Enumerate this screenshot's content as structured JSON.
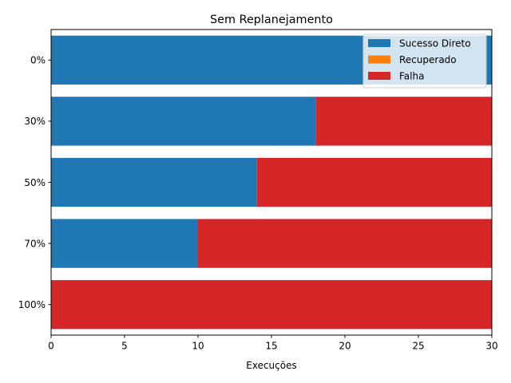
{
  "colors": {
    "background": "#ffffff",
    "axis": "#000000"
  },
  "chart_data": {
    "type": "bar",
    "orientation": "horizontal",
    "stacked": true,
    "title": "Sem Replanejamento",
    "xlabel": "Execuções",
    "ylabel": "",
    "categories": [
      "0%",
      "30%",
      "50%",
      "70%",
      "100%"
    ],
    "series": [
      {
        "name": "Sucesso Direto",
        "color": "#1f77b4",
        "values": [
          30,
          18,
          14,
          10,
          0
        ]
      },
      {
        "name": "Recuperado",
        "color": "#ff7f0e",
        "values": [
          0,
          0,
          0,
          0,
          0
        ]
      },
      {
        "name": "Falha",
        "color": "#d62728",
        "values": [
          0,
          12,
          16,
          20,
          30
        ]
      }
    ],
    "xlim": [
      0,
      30
    ],
    "xticks": [
      0,
      5,
      10,
      15,
      20,
      25,
      30
    ],
    "grid": false,
    "legend": {
      "position": "top-right"
    }
  }
}
